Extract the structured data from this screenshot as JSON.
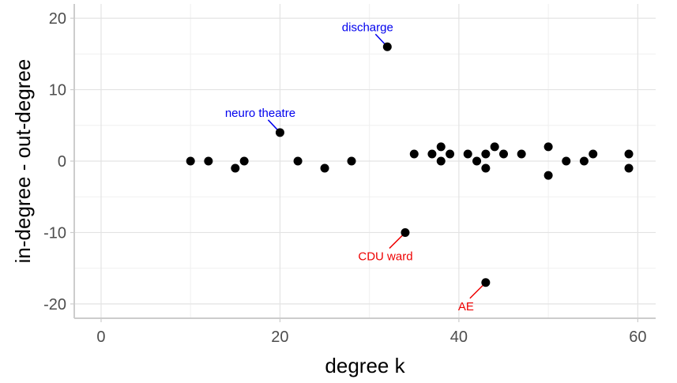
{
  "chart_data": {
    "type": "scatter",
    "title": "",
    "xlabel": "degree k",
    "ylabel": "in-degree - out-degree",
    "xlim": [
      -3,
      62
    ],
    "ylim": [
      -22,
      22
    ],
    "x_ticks": [
      0,
      20,
      40,
      60
    ],
    "y_ticks": [
      -20,
      -10,
      0,
      10,
      20
    ],
    "x_tick_labels": [
      "0",
      "20",
      "40",
      "60"
    ],
    "y_tick_labels": [
      "-20",
      "-10",
      "0",
      "10",
      "20"
    ],
    "grid": true,
    "point_color": "#000000",
    "points": [
      {
        "x": 10,
        "y": 0
      },
      {
        "x": 12,
        "y": 0
      },
      {
        "x": 15,
        "y": -1
      },
      {
        "x": 16,
        "y": 0
      },
      {
        "x": 20,
        "y": 4
      },
      {
        "x": 22,
        "y": 0
      },
      {
        "x": 25,
        "y": -1
      },
      {
        "x": 28,
        "y": 0
      },
      {
        "x": 32,
        "y": 16
      },
      {
        "x": 34,
        "y": -10
      },
      {
        "x": 35,
        "y": 1
      },
      {
        "x": 37,
        "y": 1
      },
      {
        "x": 38,
        "y": 2
      },
      {
        "x": 38,
        "y": 0
      },
      {
        "x": 39,
        "y": 1
      },
      {
        "x": 41,
        "y": 1
      },
      {
        "x": 42,
        "y": 0
      },
      {
        "x": 43,
        "y": 1
      },
      {
        "x": 43,
        "y": -1
      },
      {
        "x": 43,
        "y": -17
      },
      {
        "x": 44,
        "y": 2
      },
      {
        "x": 45,
        "y": 1
      },
      {
        "x": 47,
        "y": 1
      },
      {
        "x": 50,
        "y": 2
      },
      {
        "x": 50,
        "y": -2
      },
      {
        "x": 52,
        "y": 0
      },
      {
        "x": 54,
        "y": 0
      },
      {
        "x": 55,
        "y": 1
      },
      {
        "x": 59,
        "y": 1
      },
      {
        "x": 59,
        "y": -1
      }
    ],
    "annotations": [
      {
        "text": "discharge",
        "x": 32,
        "y": 16,
        "color": "#0000ee",
        "placement": "above-left"
      },
      {
        "text": "neuro theatre",
        "x": 20,
        "y": 4,
        "color": "#0000ee",
        "placement": "above-left"
      },
      {
        "text": "CDU ward",
        "x": 34,
        "y": -10,
        "color": "#ee0000",
        "placement": "below-left"
      },
      {
        "text": "AE",
        "x": 43,
        "y": -17,
        "color": "#ee0000",
        "placement": "below-left"
      }
    ]
  }
}
